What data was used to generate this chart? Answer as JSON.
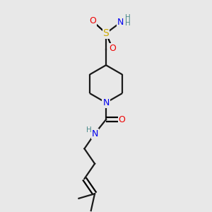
{
  "background_color": "#e8e8e8",
  "atom_colors": {
    "C": "#1a1a1a",
    "N": "#0000ee",
    "O": "#ee0000",
    "S": "#ccaa00",
    "H": "#4a8a8a"
  },
  "figsize": [
    3.0,
    3.0
  ],
  "dpi": 100,
  "bond_lw": 1.6,
  "xlim": [
    0.15,
    0.85
  ],
  "ylim": [
    0.02,
    0.98
  ]
}
